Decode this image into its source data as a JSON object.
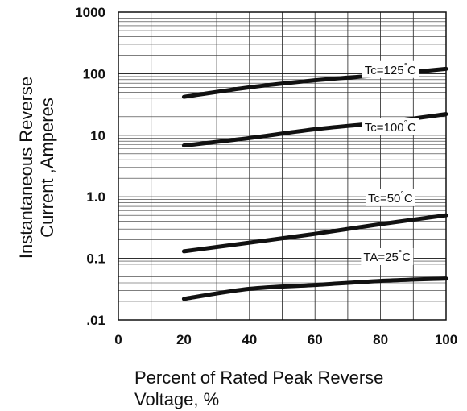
{
  "chart_data": {
    "type": "line",
    "title": "",
    "xlabel_lines": [
      "Percent of Rated Peak Reverse",
      "Voltage, %"
    ],
    "ylabel_lines": [
      "Instantaneous Reverse",
      "Current ,Amperes"
    ],
    "xlim": [
      0,
      100
    ],
    "ylim": [
      0.01,
      1000
    ],
    "yscale": "log",
    "grid": true,
    "x_tick_labels": [
      "0",
      "20",
      "40",
      "60",
      "80",
      "100"
    ],
    "y_tick_labels": [
      ".01",
      "0.1",
      "1.0",
      "10",
      "100",
      "1000"
    ],
    "series": [
      {
        "name": "Tc=125°C",
        "x": [
          20,
          40,
          60,
          80,
          100
        ],
        "y": [
          42,
          60,
          78,
          95,
          120
        ]
      },
      {
        "name": "Tc=100°C",
        "x": [
          20,
          40,
          60,
          80,
          100
        ],
        "y": [
          6.8,
          9,
          12.5,
          16,
          22
        ]
      },
      {
        "name": "Tc=50°C",
        "x": [
          20,
          40,
          60,
          80,
          100
        ],
        "y": [
          0.13,
          0.18,
          0.25,
          0.36,
          0.5
        ]
      },
      {
        "name": "TA=25°C",
        "x": [
          20,
          40,
          60,
          80,
          100
        ],
        "y": [
          0.022,
          0.032,
          0.037,
          0.043,
          0.047
        ]
      }
    ]
  }
}
